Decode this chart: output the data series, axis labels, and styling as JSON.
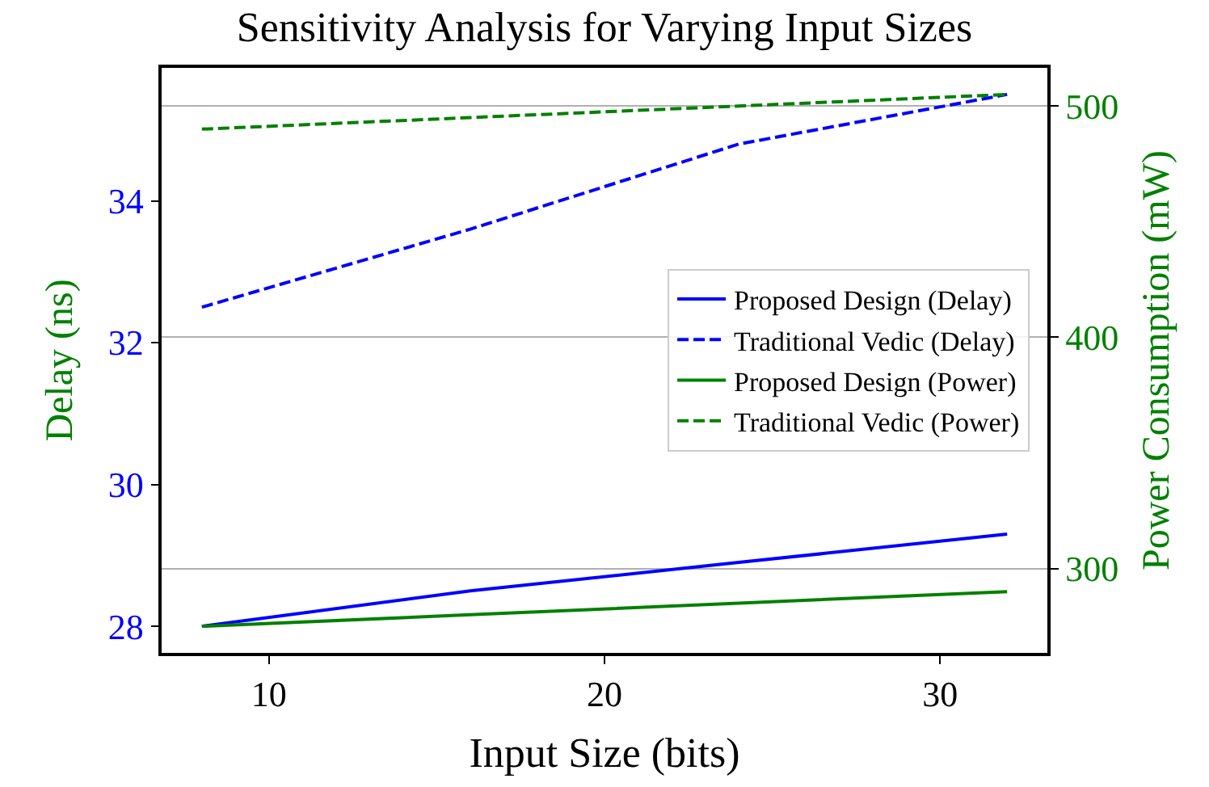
{
  "chart_data": {
    "type": "line",
    "title": "Sensitivity Analysis for Varying Input Sizes",
    "xlabel": "Input Size (bits)",
    "ylabel": "Delay (ns)",
    "y2label": "Power Consumption (mW)",
    "x": [
      8,
      16,
      24,
      32
    ],
    "series": [
      {
        "name": "Proposed Design (Delay)",
        "color": "#0000ff",
        "line_style": "solid",
        "values": [
          28.0,
          28.5,
          28.9,
          29.3
        ]
      },
      {
        "name": "Traditional Vedic (Delay)",
        "color": "#0000ff",
        "line_style": "dashed",
        "values": [
          32.5,
          33.6,
          34.8,
          35.5
        ]
      },
      {
        "name": "Proposed Design (Power)",
        "color": "#008000",
        "line_style": "solid",
        "axis": "y2",
        "values": [
          275,
          280,
          285,
          290
        ]
      },
      {
        "name": "Traditional Vedic (Power)",
        "color": "#008000",
        "line_style": "dashed",
        "axis": "y2",
        "values": [
          490,
          495,
          500,
          505
        ]
      }
    ],
    "xlim": [
      6.8,
      33.2
    ],
    "xticks": [
      10,
      20,
      30
    ],
    "ylim": [
      27.625,
      35.875
    ],
    "yticks": [
      28,
      30,
      32,
      34
    ],
    "y2lim": [
      263.5,
      516.5
    ],
    "y2ticks": [
      300,
      400,
      500
    ],
    "grid": "y2",
    "legend": "right",
    "marker": "none"
  }
}
